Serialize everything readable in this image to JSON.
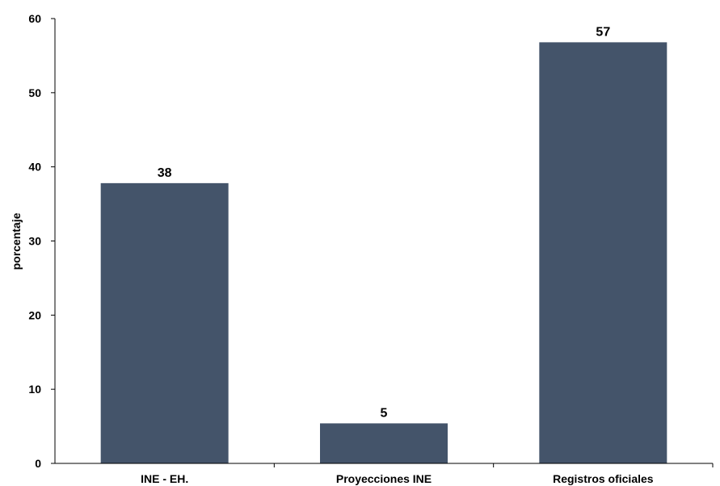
{
  "chart_data": {
    "type": "bar",
    "categories": [
      "INE - EH.",
      "Proyecciones INE",
      "Registros oficiales"
    ],
    "values": [
      37.8,
      5.4,
      56.8
    ],
    "data_labels": [
      "38",
      "5",
      "57"
    ],
    "ylabel": "porcentaje",
    "ylim": [
      0,
      60
    ],
    "yticks": [
      0,
      10,
      20,
      30,
      40,
      50,
      60
    ],
    "grid": false,
    "legend": "none",
    "bar_color": "#44546a"
  }
}
